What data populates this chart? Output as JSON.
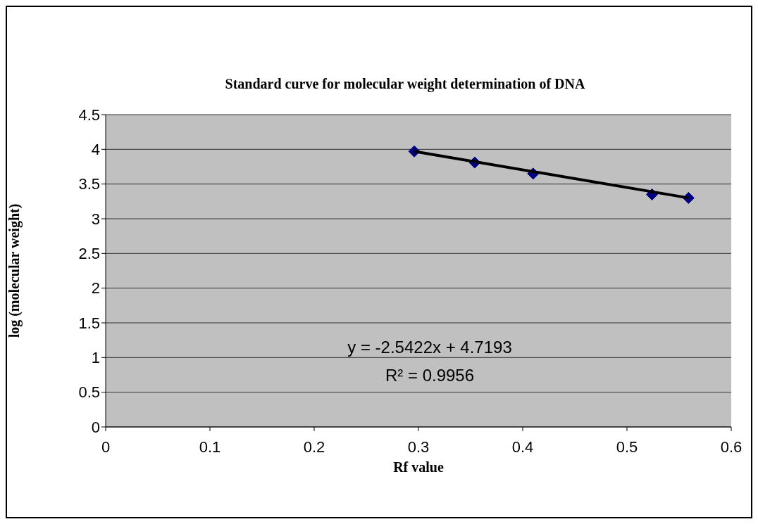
{
  "chart_data": {
    "type": "scatter",
    "title": "Standard curve for molecular weight determination of DNA",
    "xlabel": "Rf value",
    "ylabel": "log (molecular weight)",
    "x": [
      0.296,
      0.354,
      0.41,
      0.524,
      0.559
    ],
    "series": [
      {
        "color": "#000080",
        "values": [
          3.97,
          3.81,
          3.65,
          3.35,
          3.3
        ],
        "marker": "diamond"
      },
      {
        "type": "line",
        "color": "#000000",
        "x": [
          0.296,
          0.559
        ],
        "values": [
          3.97,
          3.3
        ],
        "marker": "none"
      }
    ],
    "xlim": [
      0,
      0.6
    ],
    "xticks": [
      0,
      0.1,
      0.2,
      0.3,
      0.4,
      0.5,
      0.6
    ],
    "ylim": [
      0,
      4.5
    ],
    "yticks": [
      0,
      0.5,
      1,
      1.5,
      2,
      2.5,
      3,
      3.5,
      4,
      4.5
    ],
    "grid": "y",
    "annotations": [
      "y = -2.5422x + 4.7193",
      "R² = 0.9956"
    ]
  }
}
